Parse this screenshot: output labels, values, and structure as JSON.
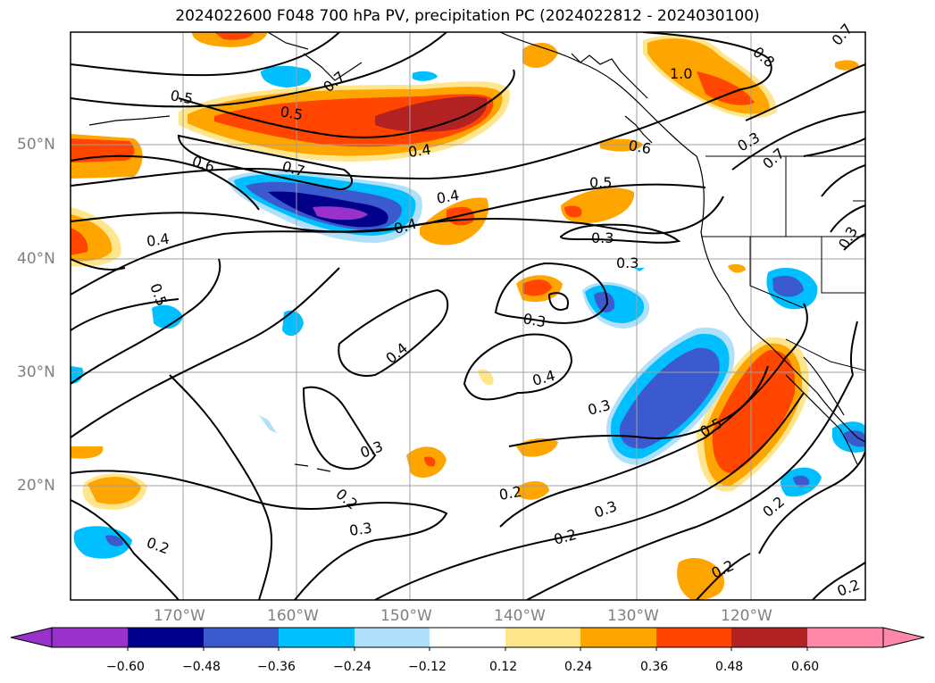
{
  "title": "2024022600 F048 700 hPa PV, precipitation PC (2024022812 - 2024030100)",
  "map": {
    "lon_labels": [
      "170°W",
      "160°W",
      "150°W",
      "140°W",
      "130°W",
      "120°W"
    ],
    "lat_labels": [
      "50°N",
      "40°N",
      "30°N",
      "20°N"
    ],
    "contour_labels": [
      "0.5",
      "0.5",
      "0.7",
      "0.7",
      "0.4",
      "0.6",
      "0.7",
      "0.4",
      "0.4",
      "0.5",
      "0.6",
      "1.0",
      "0.8",
      "0.7",
      "0.3",
      "0.3",
      "0.5",
      "0.3",
      "0.4",
      "0.4",
      "0.3",
      "0.3",
      "0.5",
      "0.3",
      "0.3",
      "0.2",
      "0.2",
      "0.2",
      "0.2",
      "0.2",
      "0.2",
      "0.3",
      "0.2",
      "0.4",
      "0.3"
    ]
  },
  "colorbar": {
    "ticks": [
      "−0.60",
      "−0.48",
      "−0.36",
      "−0.24",
      "−0.12",
      "0.12",
      "0.24",
      "0.36",
      "0.48",
      "0.60"
    ],
    "colors": [
      "#9932cc",
      "#00008b",
      "#3a5acd",
      "#00bfff",
      "#b0e0fa",
      "#ffffff",
      "#ffe68c",
      "#ffa500",
      "#ff4500",
      "#b22222",
      "#ff88aa"
    ]
  }
}
